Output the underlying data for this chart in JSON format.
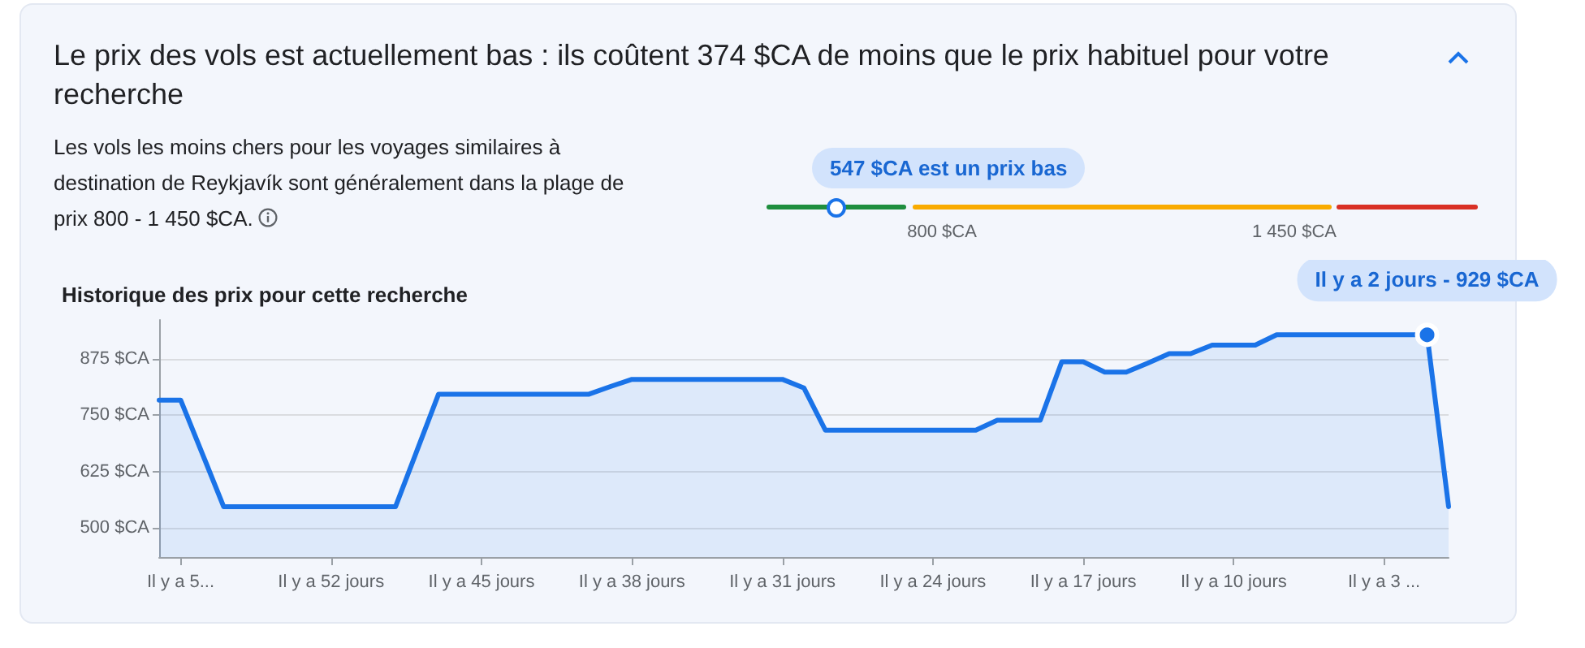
{
  "chart_data": [
    {
      "type": "other",
      "title": "Le prix des vols est actuellement bas : ils coûtent 374 $CA de moins que le prix habituel pour votre recherche",
      "subtitle": "Les vols les moins chers pour les voyages similaires à destination de Reykjavík sont généralement dans la plage de prix 800 - 1 450 $CA.",
      "annotations": [
        "547 $CA est un prix bas",
        "800 $CA",
        "1 450 $CA"
      ]
    },
    {
      "type": "area",
      "title": "Historique des prix pour cette recherche",
      "categories": [
        null,
        "Il y a 5...",
        null,
        null,
        null,
        null,
        null,
        null,
        "Il y a 52 jours",
        null,
        null,
        null,
        null,
        null,
        null,
        "Il y a 45 jours",
        null,
        null,
        null,
        null,
        null,
        null,
        "Il y a 38 jours",
        null,
        null,
        null,
        null,
        null,
        null,
        "Il y a 31 jours",
        null,
        null,
        null,
        null,
        null,
        null,
        "Il y a 24 jours",
        null,
        null,
        null,
        null,
        null,
        null,
        "Il y a 17 jours",
        null,
        null,
        null,
        null,
        null,
        null,
        "Il y a 10 jours",
        null,
        null,
        null,
        null,
        null,
        null,
        "Il y a 3 ...",
        null,
        null,
        null
      ],
      "series": [
        {
          "color": "#1a73e8",
          "values": [
            784,
            784,
            666,
            547,
            547,
            547,
            547,
            547,
            547,
            547,
            547,
            547,
            672,
            797,
            797,
            797,
            797,
            797,
            797,
            797,
            797,
            814,
            830,
            830,
            830,
            830,
            830,
            830,
            830,
            830,
            811,
            717,
            717,
            717,
            717,
            717,
            717,
            717,
            717,
            739,
            739,
            739,
            869,
            869,
            846,
            846,
            866,
            887,
            887,
            906,
            906,
            906,
            929,
            929,
            929,
            929,
            929,
            929,
            929,
            929,
            547
          ]
        }
      ],
      "ylim": [
        435,
        962
      ],
      "yticks": [
        {
          "value": 500,
          "label": "500 $CA"
        },
        {
          "value": 625,
          "label": "625 $CA"
        },
        {
          "value": 750,
          "label": "750 $CA"
        },
        {
          "value": 875,
          "label": "875 $CA"
        }
      ],
      "grid": "y",
      "marker": "none",
      "line_style": "solid",
      "annotations": [
        {
          "text": "Il y a 2 jours - 929 $CA",
          "y": 929
        }
      ]
    }
  ]
}
